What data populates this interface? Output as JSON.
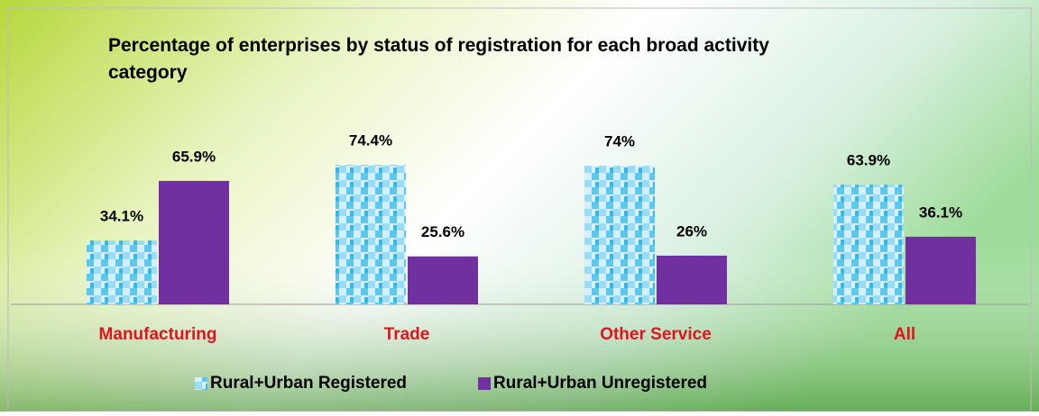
{
  "chart_data": {
    "type": "bar",
    "title": "Percentage of enterprises by status of registration for each broad activity category",
    "categories": [
      "Manufacturing",
      "Trade",
      "Other Service",
      "All"
    ],
    "series": [
      {
        "name": "Rural+Urban Registered",
        "color": "#5bc8ef",
        "values": [
          34.1,
          74.4,
          74,
          63.9
        ],
        "value_labels": [
          "34.1%",
          "74.4%",
          "74%",
          "63.9%"
        ]
      },
      {
        "name": "Rural+Urban Unregistered",
        "color": "#7030a0",
        "values": [
          65.9,
          25.6,
          26,
          36.1
        ],
        "value_labels": [
          "65.9%",
          "25.6%",
          "26%",
          "36.1%"
        ]
      }
    ],
    "ylim": [
      0,
      100
    ],
    "legend": "bottom"
  }
}
